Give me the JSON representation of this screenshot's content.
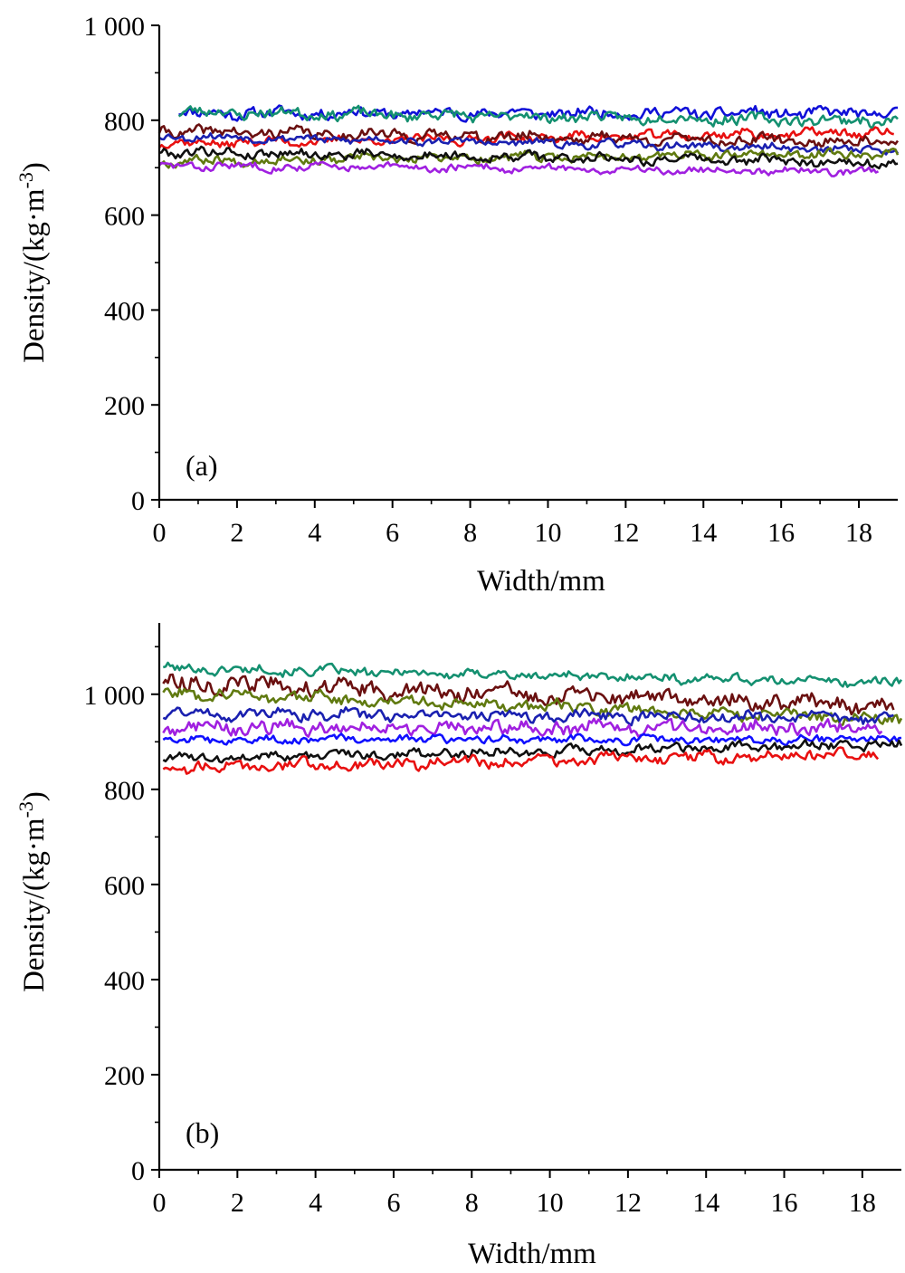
{
  "chart_data": [
    {
      "type": "line",
      "panel_label": "(a)",
      "xlabel": "Width/mm",
      "ylabel_main": "Density/(kg·m",
      "ylabel_sup": "-3",
      "ylabel_close": ")",
      "xlim": [
        0,
        19
      ],
      "ylim": [
        0,
        1000
      ],
      "xticks": [
        0,
        2,
        4,
        6,
        8,
        10,
        12,
        14,
        16,
        18
      ],
      "xtick_labels": [
        "0",
        "2",
        "4",
        "6",
        "8",
        "10",
        "12",
        "14",
        "16",
        "18"
      ],
      "yticks": [
        0,
        200,
        400,
        600,
        800,
        1000
      ],
      "ytick_labels": [
        "0",
        "200",
        "400",
        "600",
        "800",
        "1 000"
      ],
      "series": [
        {
          "color": "#1010d8",
          "x_range": [
            0.5,
            19.0
          ],
          "mean": 815,
          "amp": 14,
          "trend": 0,
          "seed": 11
        },
        {
          "color": "#149070",
          "x_range": [
            0.5,
            19.0
          ],
          "mean": 808,
          "amp": 14,
          "trend": -10,
          "seed": 23
        },
        {
          "color": "#e81010",
          "x_range": [
            0.0,
            18.9
          ],
          "mean": 763,
          "amp": 12,
          "trend": 12,
          "seed": 37
        },
        {
          "color": "#6a1010",
          "x_range": [
            0.0,
            19.0
          ],
          "mean": 765,
          "amp": 14,
          "trend": -12,
          "seed": 41
        },
        {
          "color": "#1a20b0",
          "x_range": [
            0.0,
            19.0
          ],
          "mean": 752,
          "amp": 10,
          "trend": -15,
          "seed": 53
        },
        {
          "color": "#607a10",
          "x_range": [
            0.0,
            19.0
          ],
          "mean": 722,
          "amp": 12,
          "trend": 8,
          "seed": 67
        },
        {
          "color": "#101010",
          "x_range": [
            0.0,
            19.0
          ],
          "mean": 722,
          "amp": 12,
          "trend": -12,
          "seed": 79
        },
        {
          "color": "#a020e0",
          "x_range": [
            0.0,
            18.5
          ],
          "mean": 698,
          "amp": 10,
          "trend": -6,
          "seed": 83
        }
      ]
    },
    {
      "type": "line",
      "panel_label": "(b)",
      "xlabel": "Width/mm",
      "ylabel_main": "Density/(kg·m",
      "ylabel_sup": "-3",
      "ylabel_close": ")",
      "xlim": [
        0,
        19
      ],
      "ylim": [
        0,
        1150
      ],
      "xticks": [
        0,
        2,
        4,
        6,
        8,
        10,
        12,
        14,
        16,
        18
      ],
      "xtick_labels": [
        "0",
        "2",
        "4",
        "6",
        "8",
        "10",
        "12",
        "14",
        "16",
        "18"
      ],
      "yticks": [
        0,
        200,
        400,
        600,
        800,
        1000
      ],
      "ytick_labels": [
        "0",
        "200",
        "400",
        "600",
        "800",
        "1 000"
      ],
      "series": [
        {
          "color": "#149070",
          "x_range": [
            0.1,
            19.0
          ],
          "mean": 1040,
          "amp": 12,
          "trend": -15,
          "seed": 101
        },
        {
          "color": "#6a1010",
          "x_range": [
            0.1,
            18.8
          ],
          "mean": 1000,
          "amp": 22,
          "trend": -25,
          "seed": 113
        },
        {
          "color": "#607a10",
          "x_range": [
            0.1,
            19.0
          ],
          "mean": 975,
          "amp": 15,
          "trend": -30,
          "seed": 127
        },
        {
          "color": "#1a20b0",
          "x_range": [
            0.1,
            18.8
          ],
          "mean": 955,
          "amp": 14,
          "trend": -5,
          "seed": 131
        },
        {
          "color": "#a020e0",
          "x_range": [
            0.1,
            18.5
          ],
          "mean": 930,
          "amp": 18,
          "trend": 0,
          "seed": 149
        },
        {
          "color": "#1010ff",
          "x_range": [
            0.1,
            19.0
          ],
          "mean": 905,
          "amp": 10,
          "trend": 0,
          "seed": 157
        },
        {
          "color": "#101010",
          "x_range": [
            0.1,
            19.0
          ],
          "mean": 880,
          "amp": 12,
          "trend": 15,
          "seed": 163
        },
        {
          "color": "#e81010",
          "x_range": [
            0.1,
            18.4
          ],
          "mean": 860,
          "amp": 14,
          "trend": 15,
          "seed": 179
        }
      ]
    }
  ]
}
